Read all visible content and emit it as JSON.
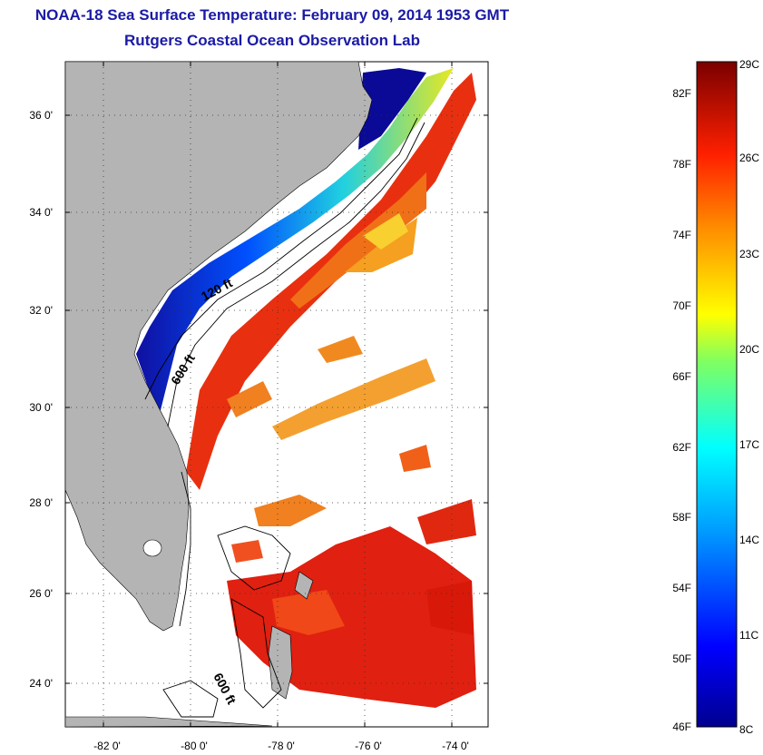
{
  "header": {
    "title": "NOAA-18 Sea Surface Temperature:  February 09, 2014 1953 GMT",
    "subtitle": "Rutgers Coastal Ocean Observation Lab"
  },
  "map": {
    "lon_ticks": [
      "-82 0'",
      "-80 0'",
      "-78 0'",
      "-76 0'",
      "-74 0'"
    ],
    "lat_ticks": [
      "36 0'",
      "34 0'",
      "32 0'",
      "30 0'",
      "28 0'",
      "26 0'",
      "24 0'"
    ],
    "contours": {
      "shelf_label": "120 ft",
      "slope_label": "600 ft",
      "bahamas_label": "600 ft"
    }
  },
  "colorbar": {
    "fahrenheit_labels": [
      "82F",
      "78F",
      "74F",
      "70F",
      "66F",
      "62F",
      "58F",
      "54F",
      "50F",
      "46F"
    ],
    "celsius_labels": [
      "29C",
      "26C",
      "23C",
      "20C",
      "17C",
      "14C",
      "11C",
      "8C"
    ]
  },
  "colors": {
    "title": "#1a1aa6",
    "land": "#b4b4b4",
    "cold": "#0a0a96",
    "warm": "#e01e00"
  }
}
